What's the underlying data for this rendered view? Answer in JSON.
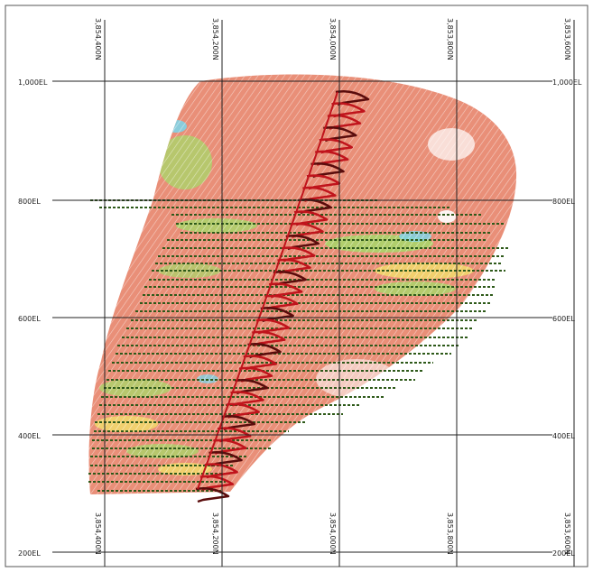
{
  "section": {
    "northing_labels": [
      "3,854,400N",
      "3,854,200N",
      "3,854,000N",
      "3,853,800N",
      "3,853,600N"
    ],
    "elevation_labels": [
      "1,000EL",
      "800EL",
      "600EL",
      "400EL",
      "200EL"
    ],
    "colors": {
      "background": "#ffffff",
      "grid": "#222222",
      "body_main": "#e98f78",
      "body_green": "#a6d96a",
      "body_yellow": "#f2e06b",
      "body_cyan": "#7fd3e6",
      "drill_trace": "#2e5a1a",
      "pit_design": "#c0141c",
      "pit_dark": "#5a0c0c"
    }
  }
}
